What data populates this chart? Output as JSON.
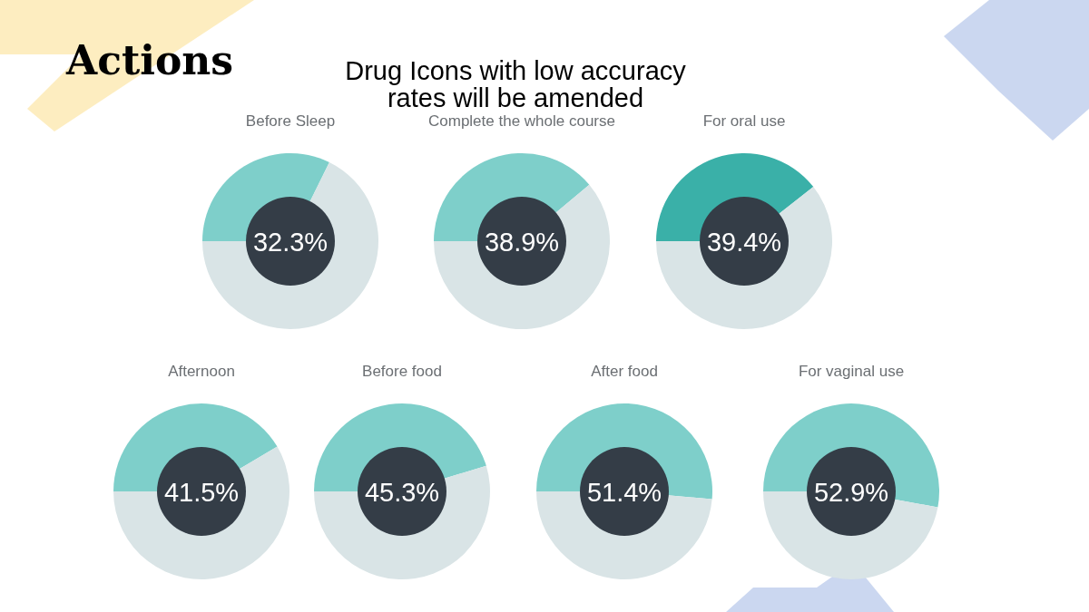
{
  "chart_data": [
    {
      "type": "other",
      "title": "Actions",
      "subtitle": "Drug Icons with low accuracy rates will be amended"
    },
    {
      "type": "donut",
      "title": "Before Sleep",
      "categories": [
        null,
        null
      ],
      "values": [
        32.3,
        67.7
      ],
      "colors": [
        "#7ecfca",
        "#d9e4e6"
      ],
      "annotations": [
        "32.3%"
      ]
    },
    {
      "type": "donut",
      "title": "Complete the whole course",
      "categories": [
        null,
        null
      ],
      "values": [
        38.9,
        61.1
      ],
      "colors": [
        "#7ecfca",
        "#d9e4e6"
      ],
      "annotations": [
        "38.9%"
      ]
    },
    {
      "type": "donut",
      "title": "For oral use",
      "categories": [
        null,
        null
      ],
      "values": [
        39.4,
        60.6
      ],
      "colors": [
        "#3ab0a8",
        "#d9e4e6"
      ],
      "annotations": [
        "39.4%"
      ]
    },
    {
      "type": "donut",
      "title": "Afternoon",
      "categories": [
        null,
        null
      ],
      "values": [
        41.5,
        58.5
      ],
      "colors": [
        "#7ecfca",
        "#d9e4e6"
      ],
      "annotations": [
        "41.5%"
      ]
    },
    {
      "type": "donut",
      "title": "Before food",
      "categories": [
        null,
        null
      ],
      "values": [
        45.3,
        54.7
      ],
      "colors": [
        "#7ecfca",
        "#d9e4e6"
      ],
      "annotations": [
        "45.3%"
      ]
    },
    {
      "type": "donut",
      "title": "After food",
      "categories": [
        null,
        null
      ],
      "values": [
        51.4,
        48.6
      ],
      "colors": [
        "#7ecfca",
        "#d9e4e6"
      ],
      "annotations": [
        "51.4%"
      ]
    },
    {
      "type": "donut",
      "title": "For vaginal use",
      "categories": [
        null,
        null
      ],
      "values": [
        52.9,
        47.1
      ],
      "colors": [
        "#7ecfca",
        "#d9e4e6"
      ],
      "annotations": [
        "52.9%"
      ]
    }
  ]
}
